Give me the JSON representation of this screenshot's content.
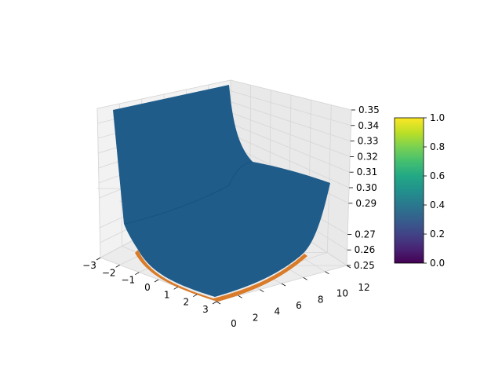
{
  "chart_data": {
    "type": "surface-3d",
    "title": "",
    "xlabel": "",
    "ylabel": "",
    "zlabel": "",
    "x_ticks": [
      -3,
      -2,
      -1,
      0,
      1,
      2,
      3
    ],
    "y_ticks": [
      0,
      2,
      4,
      6,
      8,
      10,
      12
    ],
    "z_ticks": [
      "0.25",
      "0.26",
      "0.27",
      "0.29",
      "0.30",
      "0.31",
      "0.32",
      "0.33",
      "0.34",
      "0.35"
    ],
    "x_range": [
      -3,
      3
    ],
    "y_range": [
      0,
      12
    ],
    "z_range": [
      0.25,
      0.35
    ],
    "surfaces": [
      {
        "color": "#1f5c8a",
        "description_value": "main surface"
      },
      {
        "color": "#d97b29",
        "description_value": "lower surface"
      }
    ],
    "grid": true,
    "colorbar": {
      "colormap": "viridis",
      "range": [
        0.0,
        1.0
      ],
      "ticks": [
        "0.0",
        "0.2",
        "0.4",
        "0.6",
        "0.8",
        "1.0"
      ]
    }
  }
}
